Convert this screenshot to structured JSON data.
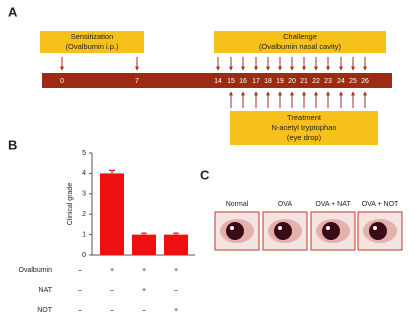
{
  "panel_a": {
    "label": "A",
    "sensitization": {
      "title": "Sensitization",
      "detail": "(Ovalbumin i.p.)"
    },
    "challenge": {
      "title": "Challenge",
      "detail": "(Ovalbumin nasal cavity)"
    },
    "days": [
      "0",
      "7",
      "14",
      "15",
      "16",
      "17",
      "18",
      "19",
      "20",
      "21",
      "22",
      "23",
      "24",
      "25",
      "26"
    ],
    "treatment": {
      "title": "Treatment",
      "drug": "N-acetyl tryptophan",
      "detail": "(eye drop)"
    }
  },
  "panel_b": {
    "label": "B"
  },
  "chart_data": {
    "type": "bar",
    "y_label": "Clinical grade",
    "values": [
      0,
      4,
      1,
      1
    ],
    "errors": [
      0,
      0.15,
      0.07,
      0.07
    ],
    "color": "#ee1111",
    "ylim": [
      0,
      5
    ],
    "yticks": [
      0,
      1,
      2,
      3,
      4,
      5
    ],
    "rows": [
      {
        "name": "Ovalbumin",
        "signs": [
          "–",
          "+",
          "+",
          "+"
        ]
      },
      {
        "name": "NAT",
        "signs": [
          "–",
          "–",
          "+",
          "–"
        ]
      },
      {
        "name": "NOT",
        "signs": [
          "–",
          "–",
          "–",
          "+"
        ]
      }
    ]
  },
  "panel_c": {
    "label": "C",
    "images": [
      "Normal",
      "OVA",
      "OVA + NAT",
      "OVA + NOT"
    ]
  }
}
